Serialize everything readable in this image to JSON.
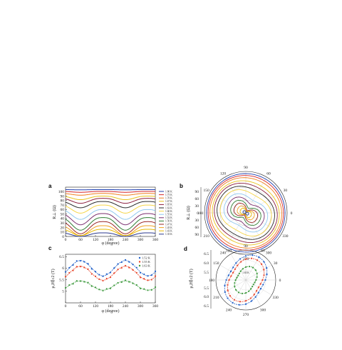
{
  "chart_data": [
    {
      "panel": "a",
      "type": "line",
      "xlabel": "φ (degree)",
      "ylabel": "R⊥ (Ω)",
      "xlim": [
        0,
        360
      ],
      "ylim": [
        0,
        110
      ],
      "xticks": [
        0,
        60,
        120,
        180,
        240,
        300,
        360
      ],
      "yticks": [
        0,
        10,
        20,
        30,
        40,
        50,
        60,
        70,
        80,
        90,
        100
      ],
      "legend_position": "right",
      "series": [
        {
          "name": "1.80 K",
          "color": "#1f3fae",
          "base": 104.5,
          "dip": 0.5
        },
        {
          "name": "1.75 K",
          "color": "#d62728",
          "base": 100.5,
          "dip": 2
        },
        {
          "name": "1.70 K",
          "color": "#f07f1e",
          "base": 96,
          "dip": 4
        },
        {
          "name": "1.67 K",
          "color": "#e8c21b",
          "base": 90,
          "dip": 8
        },
        {
          "name": "1.65 K",
          "color": "#8b1e3f",
          "base": 85,
          "dip": 11
        },
        {
          "name": "1.63 K",
          "color": "#2a2a2a",
          "base": 78,
          "dip": 14
        },
        {
          "name": "1.60 K",
          "color": "#f5d547",
          "base": 70,
          "dip": 18
        },
        {
          "name": "1.55 K",
          "color": "#8fc8ee",
          "base": 60,
          "dip": 22
        },
        {
          "name": "1.52 K",
          "color": "#7a2d6e",
          "base": 51,
          "dip": 25
        },
        {
          "name": "1.50 K",
          "color": "#2e7d32",
          "base": 42,
          "dip": 28
        },
        {
          "name": "1.47 K",
          "color": "#9a2525",
          "base": 33,
          "dip": 27
        },
        {
          "name": "1.45 K",
          "color": "#f0a020",
          "base": 24,
          "dip": 22
        },
        {
          "name": "1.43 K",
          "color": "#e6b800",
          "base": 16,
          "dip": 14
        },
        {
          "name": "1.35 K",
          "color": "#2b3a8f",
          "base": 8,
          "dip": 8
        }
      ]
    },
    {
      "panel": "b",
      "type": "polar",
      "ylabel": "R⊥ (Ω)",
      "angle_ticks": [
        0,
        30,
        60,
        90,
        120,
        150,
        180,
        210,
        240,
        270,
        300,
        330
      ],
      "radial_ticks": [
        0,
        30,
        60,
        90
      ]
    },
    {
      "panel": "c",
      "type": "scatter",
      "xlabel": "φ (degree)",
      "ylabel": "μ₀H∥c2 (T)",
      "xlim": [
        0,
        360
      ],
      "ylim": [
        4.5,
        6.6
      ],
      "xticks": [
        0,
        60,
        120,
        180,
        240,
        300,
        360
      ],
      "yticks": [
        5,
        5.5,
        6,
        6.5
      ],
      "legend_position": "top-right",
      "series": [
        {
          "name": "1.52 K",
          "color": "#1f5fc8",
          "mean": 6.0,
          "amp": 0.33
        },
        {
          "name": "1.55 K",
          "color": "#e8452b",
          "mean": 5.78,
          "amp": 0.3
        },
        {
          "name": "1.63 K",
          "color": "#3e9a3e",
          "mean": 5.25,
          "amp": 0.2
        }
      ]
    },
    {
      "panel": "d",
      "type": "polar",
      "ylabel": "μ₀H∥c2 (T)",
      "angle_ticks": [
        0,
        30,
        60,
        90,
        120,
        150,
        180,
        210,
        240,
        270,
        300,
        330
      ],
      "radial_ticks": [
        5,
        5.5,
        6,
        6.5
      ],
      "annotation": "1.63 K"
    }
  ]
}
